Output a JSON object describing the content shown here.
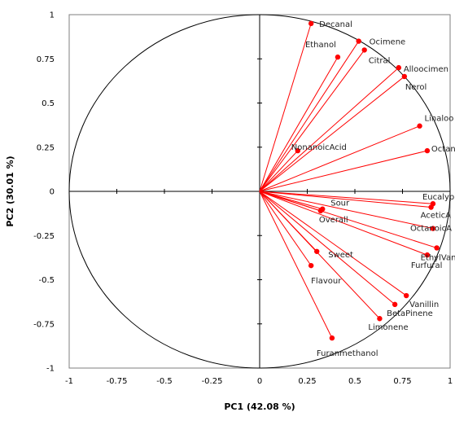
{
  "chart_data": {
    "type": "scatter",
    "subtype": "pca-biplot-correlation-circle",
    "title": "",
    "xlabel": "PC1 (42.08 %)",
    "ylabel": "PC2 (30.01 %)",
    "xlim": [
      -1,
      1
    ],
    "ylim": [
      -1,
      1
    ],
    "xticks": [
      "-1",
      "-0.75",
      "-0.5",
      "-0.25",
      "0",
      "0.25",
      "0.5",
      "0.75",
      "1"
    ],
    "yticks": [
      "1",
      "0.75",
      "0.5",
      "0.25",
      "0",
      "-0.25",
      "-0.5",
      "-0.75",
      "-1"
    ],
    "grid": false,
    "legend": "none",
    "unit_circle": true,
    "vectors_from_origin": true,
    "series_color": "#ff0000",
    "points": [
      {
        "label": "Decanal",
        "x": 0.27,
        "y": 0.95
      },
      {
        "label": "Ethanol",
        "x": 0.41,
        "y": 0.76
      },
      {
        "label": "Ocimene",
        "x": 0.52,
        "y": 0.85
      },
      {
        "label": "Citral",
        "x": 0.55,
        "y": 0.8
      },
      {
        "label": "Alloocimen",
        "x": 0.73,
        "y": 0.7
      },
      {
        "label": "Nerol",
        "x": 0.76,
        "y": 0.65
      },
      {
        "label": "Linaloo",
        "x": 0.84,
        "y": 0.37
      },
      {
        "label": "NonanoicAcid",
        "x": 0.2,
        "y": 0.23
      },
      {
        "label": "Octano",
        "x": 0.88,
        "y": 0.23
      },
      {
        "label": "Eucalyp",
        "x": 0.91,
        "y": -0.07
      },
      {
        "label": "AceticA",
        "x": 0.9,
        "y": -0.09
      },
      {
        "label": "Sour",
        "x": 0.33,
        "y": -0.1
      },
      {
        "label": "Overall",
        "x": 0.32,
        "y": -0.11
      },
      {
        "label": "OctanoicA",
        "x": 0.91,
        "y": -0.21
      },
      {
        "label": "Sweet",
        "x": 0.3,
        "y": -0.34
      },
      {
        "label": "EthylVani",
        "x": 0.93,
        "y": -0.32
      },
      {
        "label": "Furfural",
        "x": 0.88,
        "y": -0.36
      },
      {
        "label": "Flavour",
        "x": 0.27,
        "y": -0.42
      },
      {
        "label": "Vanillin",
        "x": 0.77,
        "y": -0.59
      },
      {
        "label": "BetaPinene",
        "x": 0.71,
        "y": -0.64
      },
      {
        "label": "Limonene",
        "x": 0.63,
        "y": -0.72
      },
      {
        "label": "Furanmethanol",
        "x": 0.38,
        "y": -0.83
      }
    ]
  }
}
